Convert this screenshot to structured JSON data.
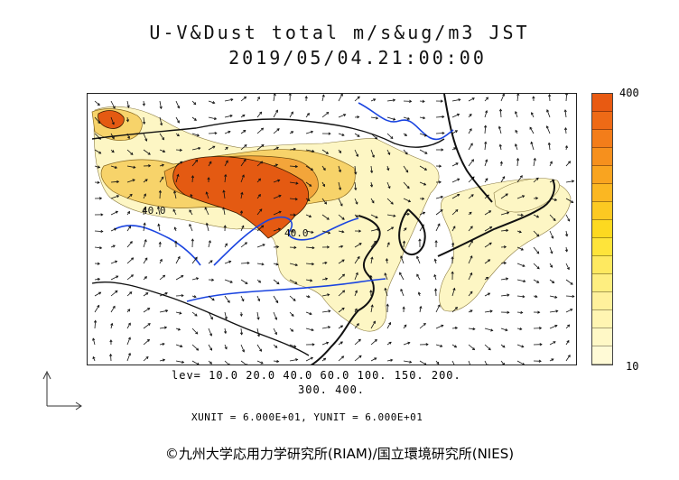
{
  "title": "U-V&Dust total m/s&ug/m3 JST",
  "datetime": "2019/05/04.21:00:00",
  "contour_labels": [
    "40.0",
    "40.0"
  ],
  "colorbar": {
    "max_label": "400",
    "min_label": "10",
    "colors": [
      "#e85a12",
      "#ee6a16",
      "#f37d1a",
      "#f6901d",
      "#f9a420",
      "#fbb722",
      "#fcc922",
      "#fdd920",
      "#fee43a",
      "#fee960",
      "#feee80",
      "#fff19c",
      "#fff5b2",
      "#fff8c6",
      "#fffad6"
    ]
  },
  "levels_line1": "lev= 10.0 20.0 40.0 60.0 100. 150. 200.",
  "levels_line2": "300. 400.",
  "units_text": "XUNIT = 6.000E+01, YUNIT = 6.000E+01",
  "copyright": "©九州大学応用力学研究所(RIAM)/国立環境研究所(NIES)",
  "map_colors": {
    "land_outline": "#111111",
    "river": "#1a44e0",
    "dust_light": "#fdf6c4",
    "dust_mid": "#f7d36a",
    "dust_high": "#f3a53a",
    "dust_max": "#e45a12",
    "arrow": "#111111"
  }
}
